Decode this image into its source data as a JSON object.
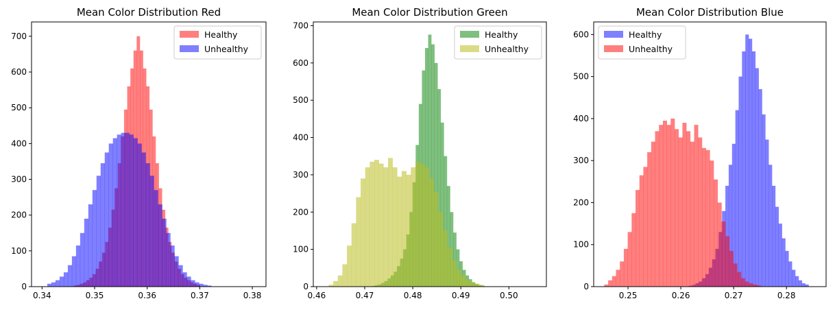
{
  "chart_data": [
    {
      "type": "bar",
      "title": "Mean Color Distribution Red",
      "xlabel": "",
      "ylabel": "",
      "xlim": [
        0.338,
        0.3826
      ],
      "ylim": [
        0,
        740
      ],
      "xticks": [
        0.34,
        0.35,
        0.36,
        0.37,
        0.38
      ],
      "xtick_labels": [
        "0.34",
        "0.35",
        "0.36",
        "0.37",
        "0.38"
      ],
      "yticks": [
        0,
        100,
        200,
        300,
        400,
        500,
        600,
        700
      ],
      "ytick_labels": [
        "0",
        "100",
        "200",
        "300",
        "400",
        "500",
        "600",
        "700"
      ],
      "legend_position": "top-right",
      "series": [
        {
          "name": "Healthy",
          "color": "#ff0000",
          "alpha": 0.5,
          "bin_start": 0.346,
          "bin_width": 0.0006,
          "counts": [
            3,
            5,
            8,
            12,
            18,
            25,
            35,
            50,
            70,
            95,
            125,
            165,
            215,
            275,
            345,
            420,
            495,
            560,
            610,
            660,
            700,
            660,
            610,
            560,
            495,
            420,
            345,
            275,
            215,
            165,
            125,
            95,
            70,
            50,
            35,
            25,
            18,
            12,
            8,
            5
          ]
        },
        {
          "name": "Unhealthy",
          "color": "#0000ff",
          "alpha": 0.5,
          "bin_start": 0.341,
          "bin_width": 0.00078,
          "counts": [
            8,
            12,
            18,
            28,
            40,
            60,
            85,
            115,
            150,
            190,
            230,
            270,
            310,
            345,
            375,
            400,
            415,
            425,
            430,
            430,
            425,
            415,
            400,
            375,
            345,
            310,
            270,
            230,
            190,
            150,
            115,
            85,
            60,
            40,
            28,
            18,
            12,
            8,
            5,
            3
          ]
        }
      ]
    },
    {
      "type": "bar",
      "title": "Mean Color Distribution Green",
      "xlabel": "",
      "ylabel": "",
      "xlim": [
        0.4593,
        0.5078
      ],
      "ylim": [
        0,
        710
      ],
      "xticks": [
        0.46,
        0.47,
        0.48,
        0.49,
        0.5
      ],
      "xtick_labels": [
        "0.46",
        "0.47",
        "0.48",
        "0.49",
        "0.50"
      ],
      "yticks": [
        0,
        100,
        200,
        300,
        400,
        500,
        600,
        700
      ],
      "ytick_labels": [
        "0",
        "100",
        "200",
        "300",
        "400",
        "500",
        "600",
        "700"
      ],
      "legend_position": "top-right",
      "series": [
        {
          "name": "Healthy",
          "color": "#008000",
          "alpha": 0.5,
          "bin_start": 0.4715,
          "bin_width": 0.00065,
          "counts": [
            2,
            4,
            6,
            10,
            15,
            22,
            30,
            40,
            55,
            75,
            100,
            140,
            200,
            280,
            380,
            490,
            580,
            640,
            676,
            650,
            600,
            530,
            440,
            350,
            270,
            200,
            145,
            100,
            68,
            45,
            30,
            20,
            12,
            7,
            4,
            2
          ]
        },
        {
          "name": "Unhealthy",
          "color": "#bcbd22",
          "alpha": 0.55,
          "bin_start": 0.4625,
          "bin_width": 0.00095,
          "counts": [
            5,
            15,
            30,
            60,
            110,
            170,
            240,
            290,
            320,
            335,
            340,
            330,
            320,
            345,
            320,
            295,
            310,
            300,
            320,
            335,
            330,
            320,
            290,
            255,
            200,
            150,
            105,
            70,
            45,
            30,
            18,
            12,
            8,
            5
          ]
        }
      ]
    },
    {
      "type": "bar",
      "title": "Mean Color Distribution Blue",
      "xlabel": "",
      "ylabel": "",
      "xlim": [
        0.2435,
        0.2875
      ],
      "ylim": [
        0,
        630
      ],
      "xticks": [
        0.25,
        0.26,
        0.27,
        0.28
      ],
      "xtick_labels": [
        "0.25",
        "0.26",
        "0.27",
        "0.28"
      ],
      "yticks": [
        0,
        100,
        200,
        300,
        400,
        500,
        600
      ],
      "ytick_labels": [
        "0",
        "100",
        "200",
        "300",
        "400",
        "500",
        "600"
      ],
      "legend_position": "top-left",
      "series": [
        {
          "name": "Healthy",
          "color": "#0000ff",
          "alpha": 0.5,
          "bin_start": 0.2615,
          "bin_width": 0.00063,
          "counts": [
            2,
            4,
            8,
            12,
            20,
            30,
            45,
            65,
            90,
            130,
            180,
            240,
            290,
            340,
            420,
            500,
            560,
            600,
            590,
            560,
            520,
            470,
            410,
            350,
            290,
            240,
            190,
            150,
            115,
            85,
            60,
            40,
            25,
            15,
            8,
            5
          ]
        },
        {
          "name": "Unhealthy",
          "color": "#ff0000",
          "alpha": 0.5,
          "bin_start": 0.2455,
          "bin_width": 0.00074,
          "counts": [
            5,
            15,
            25,
            40,
            60,
            90,
            130,
            175,
            230,
            265,
            285,
            320,
            345,
            370,
            385,
            395,
            385,
            400,
            375,
            355,
            390,
            370,
            345,
            385,
            355,
            330,
            325,
            300,
            255,
            200,
            155,
            120,
            85,
            55,
            35,
            20,
            12,
            8,
            5,
            3
          ]
        }
      ]
    }
  ]
}
